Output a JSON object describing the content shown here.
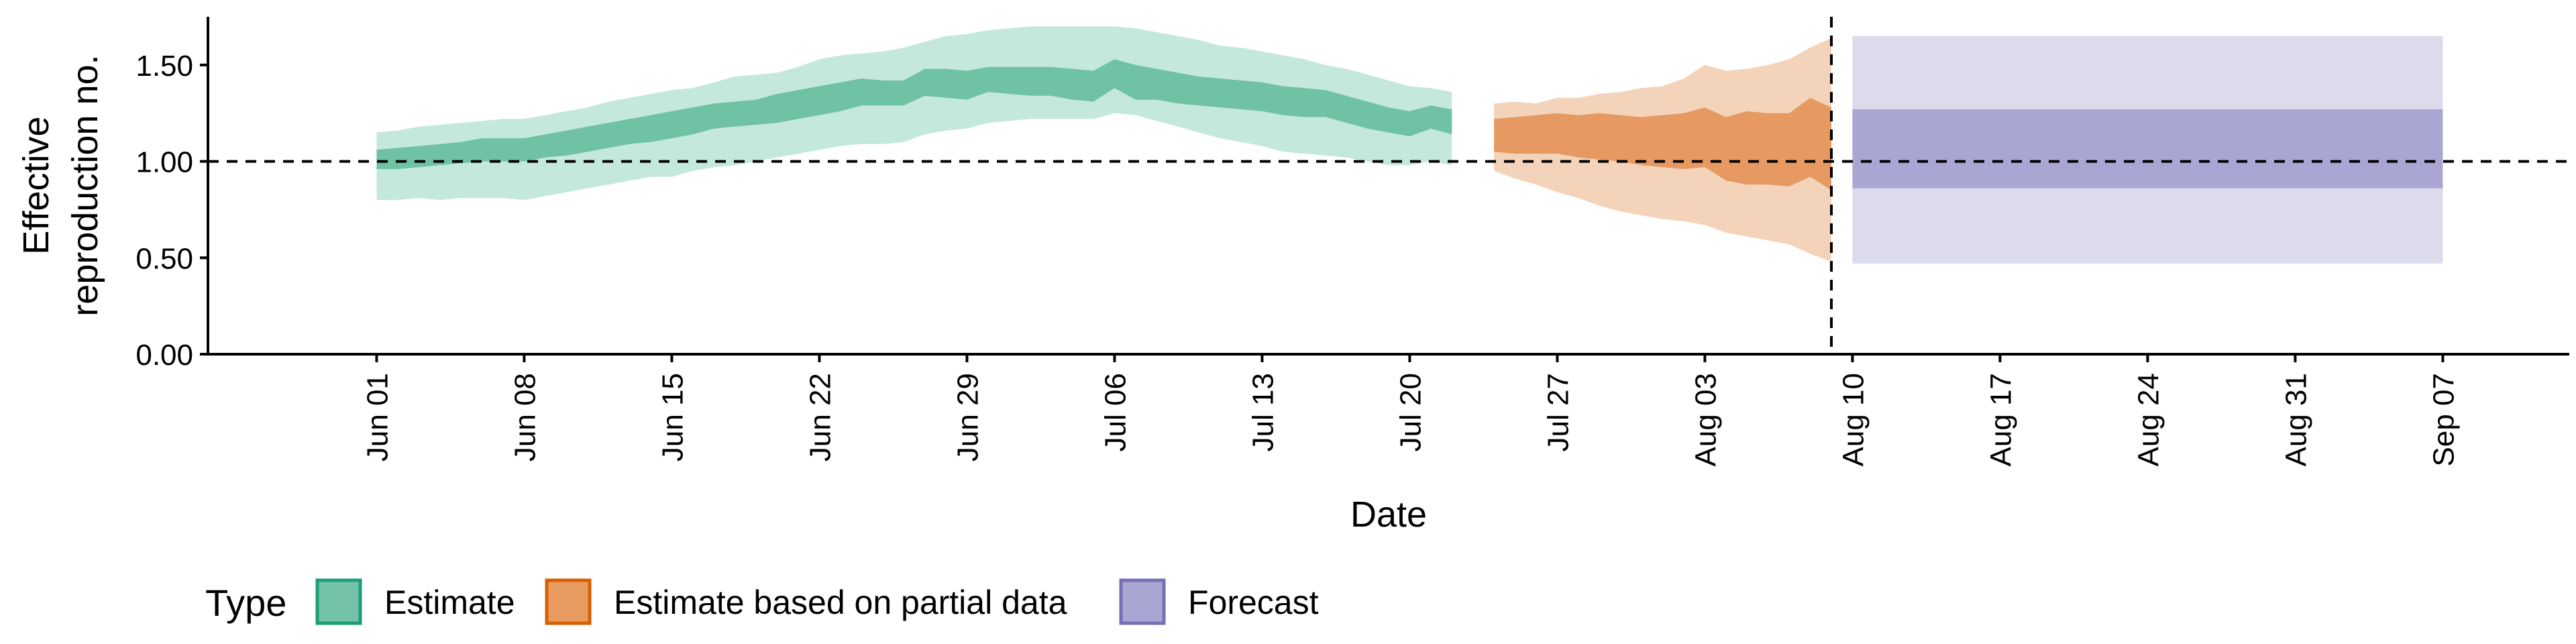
{
  "chart_data": {
    "type": "area",
    "xlabel": "Date",
    "ylabel": "Effective reproduction no.",
    "ylabel_lines": [
      "Effective",
      "reproduction no."
    ],
    "ylim": [
      0,
      1.75
    ],
    "xlim": [
      "2020-05-24",
      "2020-09-13"
    ],
    "x_ticks": [
      "2020-06-01",
      "2020-06-08",
      "2020-06-15",
      "2020-06-22",
      "2020-06-29",
      "2020-07-06",
      "2020-07-13",
      "2020-07-20",
      "2020-07-27",
      "2020-08-03",
      "2020-08-10",
      "2020-08-17",
      "2020-08-24",
      "2020-08-31",
      "2020-09-07"
    ],
    "x_tick_labels": [
      "Jun 01",
      "Jun 08",
      "Jun 15",
      "Jun 22",
      "Jun 29",
      "Jul 06",
      "Jul 13",
      "Jul 20",
      "Jul 27",
      "Aug 03",
      "Aug 10",
      "Aug 17",
      "Aug 24",
      "Aug 31",
      "Sep 07"
    ],
    "y_ticks": [
      0,
      0.5,
      1.0,
      1.5
    ],
    "y_tick_labels": [
      "0.00",
      "0.50",
      "1.00",
      "1.50"
    ],
    "reference_hline": 1.0,
    "forecast_vline": "2020-08-09",
    "legend": {
      "title": "Type",
      "position": "bottom",
      "entries": [
        {
          "label": "Estimate",
          "fill": "#74c3a8",
          "stroke": "#1b9e77"
        },
        {
          "label": "Estimate based on partial data",
          "fill": "#e89b60",
          "stroke": "#d95f02"
        },
        {
          "label": "Forecast",
          "fill": "#aaa6d4",
          "stroke": "#7570b3"
        }
      ]
    },
    "series": [
      {
        "name": "Estimate",
        "color_outer": "#c5e8dc",
        "color_inner": "#70c2a5",
        "x": [
          "2020-06-01",
          "2020-06-02",
          "2020-06-03",
          "2020-06-04",
          "2020-06-05",
          "2020-06-06",
          "2020-06-07",
          "2020-06-08",
          "2020-06-09",
          "2020-06-10",
          "2020-06-11",
          "2020-06-12",
          "2020-06-13",
          "2020-06-14",
          "2020-06-15",
          "2020-06-16",
          "2020-06-17",
          "2020-06-18",
          "2020-06-19",
          "2020-06-20",
          "2020-06-21",
          "2020-06-22",
          "2020-06-23",
          "2020-06-24",
          "2020-06-25",
          "2020-06-26",
          "2020-06-27",
          "2020-06-28",
          "2020-06-29",
          "2020-06-30",
          "2020-07-01",
          "2020-07-02",
          "2020-07-03",
          "2020-07-04",
          "2020-07-05",
          "2020-07-06",
          "2020-07-07",
          "2020-07-08",
          "2020-07-09",
          "2020-07-10",
          "2020-07-11",
          "2020-07-12",
          "2020-07-13",
          "2020-07-14",
          "2020-07-15",
          "2020-07-16",
          "2020-07-17",
          "2020-07-18",
          "2020-07-19",
          "2020-07-20",
          "2020-07-21",
          "2020-07-22"
        ],
        "lower90": [
          0.8,
          0.8,
          0.81,
          0.8,
          0.81,
          0.81,
          0.81,
          0.8,
          0.82,
          0.84,
          0.86,
          0.88,
          0.9,
          0.92,
          0.92,
          0.95,
          0.97,
          0.98,
          1.0,
          1.02,
          1.04,
          1.06,
          1.08,
          1.09,
          1.09,
          1.1,
          1.14,
          1.16,
          1.17,
          1.2,
          1.21,
          1.22,
          1.22,
          1.22,
          1.22,
          1.25,
          1.24,
          1.21,
          1.18,
          1.15,
          1.12,
          1.1,
          1.08,
          1.05,
          1.04,
          1.03,
          1.02,
          1.0,
          0.98,
          0.98,
          1.0,
          0.98
        ],
        "upper90": [
          1.15,
          1.16,
          1.18,
          1.19,
          1.2,
          1.21,
          1.22,
          1.22,
          1.24,
          1.26,
          1.28,
          1.31,
          1.33,
          1.35,
          1.37,
          1.38,
          1.41,
          1.44,
          1.45,
          1.46,
          1.49,
          1.53,
          1.55,
          1.56,
          1.57,
          1.59,
          1.62,
          1.65,
          1.66,
          1.68,
          1.69,
          1.7,
          1.7,
          1.7,
          1.7,
          1.7,
          1.69,
          1.67,
          1.65,
          1.63,
          1.6,
          1.59,
          1.57,
          1.55,
          1.53,
          1.5,
          1.48,
          1.45,
          1.42,
          1.39,
          1.38,
          1.36
        ],
        "lower50": [
          0.96,
          0.96,
          0.97,
          0.98,
          0.99,
          1.0,
          1.0,
          1.0,
          1.02,
          1.03,
          1.05,
          1.07,
          1.09,
          1.1,
          1.12,
          1.14,
          1.17,
          1.18,
          1.19,
          1.2,
          1.22,
          1.24,
          1.26,
          1.29,
          1.29,
          1.29,
          1.34,
          1.33,
          1.32,
          1.36,
          1.35,
          1.34,
          1.34,
          1.32,
          1.31,
          1.38,
          1.32,
          1.32,
          1.3,
          1.29,
          1.28,
          1.27,
          1.26,
          1.24,
          1.23,
          1.23,
          1.2,
          1.17,
          1.15,
          1.13,
          1.17,
          1.14
        ],
        "upper50": [
          1.06,
          1.07,
          1.08,
          1.09,
          1.1,
          1.12,
          1.12,
          1.12,
          1.14,
          1.16,
          1.18,
          1.2,
          1.22,
          1.24,
          1.26,
          1.28,
          1.3,
          1.31,
          1.32,
          1.35,
          1.37,
          1.39,
          1.41,
          1.43,
          1.42,
          1.42,
          1.48,
          1.48,
          1.47,
          1.49,
          1.49,
          1.49,
          1.49,
          1.48,
          1.47,
          1.53,
          1.5,
          1.48,
          1.46,
          1.44,
          1.43,
          1.42,
          1.41,
          1.39,
          1.38,
          1.37,
          1.34,
          1.31,
          1.28,
          1.26,
          1.29,
          1.27
        ]
      },
      {
        "name": "Estimate based on partial data",
        "color_outer": "#f4d3bb",
        "color_inner": "#e69a61",
        "x": [
          "2020-07-24",
          "2020-07-25",
          "2020-07-26",
          "2020-07-27",
          "2020-07-28",
          "2020-07-29",
          "2020-07-30",
          "2020-07-31",
          "2020-08-01",
          "2020-08-02",
          "2020-08-03",
          "2020-08-04",
          "2020-08-05",
          "2020-08-06",
          "2020-08-07",
          "2020-08-08",
          "2020-08-09"
        ],
        "lower90": [
          0.95,
          0.91,
          0.88,
          0.84,
          0.81,
          0.77,
          0.74,
          0.72,
          0.7,
          0.69,
          0.67,
          0.63,
          0.61,
          0.59,
          0.57,
          0.52,
          0.48
        ],
        "upper90": [
          1.3,
          1.31,
          1.3,
          1.33,
          1.33,
          1.35,
          1.36,
          1.38,
          1.39,
          1.43,
          1.5,
          1.47,
          1.48,
          1.5,
          1.53,
          1.59,
          1.64
        ],
        "lower50": [
          1.05,
          1.04,
          1.04,
          1.04,
          1.02,
          1.01,
          1.0,
          0.98,
          0.97,
          0.96,
          0.97,
          0.9,
          0.88,
          0.88,
          0.87,
          0.92,
          0.85
        ],
        "upper50": [
          1.22,
          1.23,
          1.24,
          1.25,
          1.24,
          1.25,
          1.24,
          1.23,
          1.24,
          1.25,
          1.28,
          1.23,
          1.26,
          1.25,
          1.25,
          1.33,
          1.28
        ]
      },
      {
        "name": "Forecast",
        "color_outer": "#dcdbec",
        "color_inner": "#aaa6d4",
        "x": [
          "2020-08-10",
          "2020-09-07"
        ],
        "lower90": [
          0.47,
          0.47
        ],
        "upper90": [
          1.65,
          1.65
        ],
        "lower50": [
          0.86,
          0.86
        ],
        "upper50": [
          1.27,
          1.27
        ]
      }
    ]
  }
}
